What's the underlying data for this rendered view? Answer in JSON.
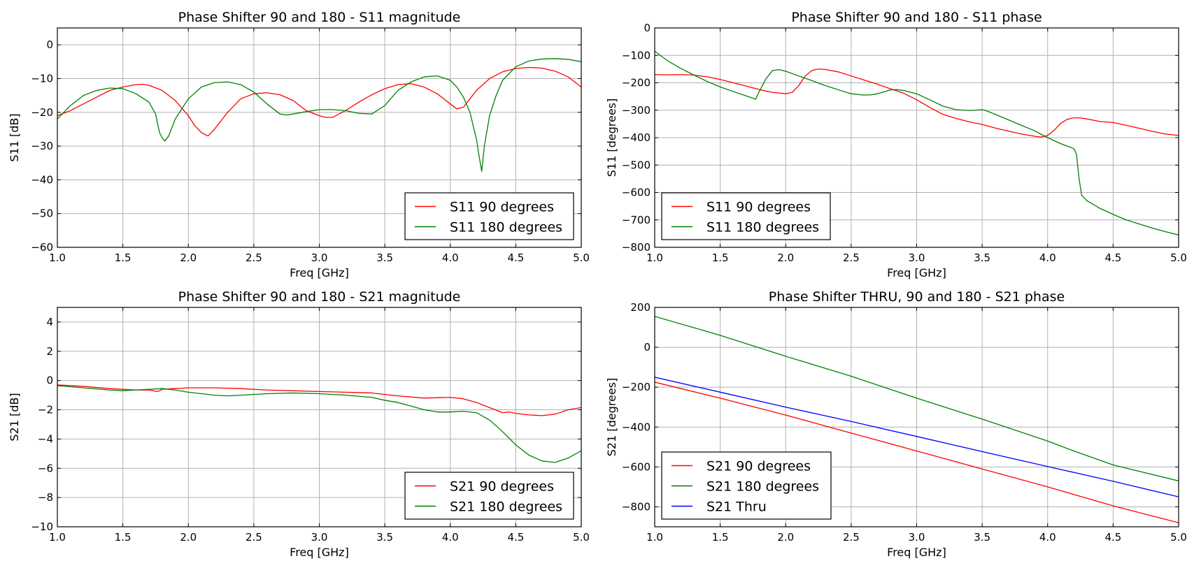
{
  "chart_data": [
    {
      "type": "line",
      "title": "Phase Shifter 90 and 180 - S11 magnitude",
      "xlabel": "Freq [GHz]",
      "ylabel": "S11 [dB]",
      "xlim": [
        1.0,
        5.0
      ],
      "ylim": [
        -60,
        5
      ],
      "xticks": [
        "1.0",
        "1.5",
        "2.0",
        "2.5",
        "3.0",
        "3.5",
        "4.0",
        "4.5",
        "5.0"
      ],
      "yticks": [
        "−60",
        "−50",
        "−40",
        "−30",
        "−20",
        "−10",
        "0"
      ],
      "grid": true,
      "legend_position": "lower-right",
      "series": [
        {
          "name": "S11 90 degrees",
          "color": "#ff0000",
          "x": [
            1.0,
            1.1,
            1.2,
            1.3,
            1.4,
            1.5,
            1.6,
            1.65,
            1.7,
            1.8,
            1.9,
            2.0,
            2.05,
            2.1,
            2.15,
            2.2,
            2.3,
            2.4,
            2.5,
            2.6,
            2.7,
            2.8,
            2.9,
            3.0,
            3.05,
            3.1,
            3.2,
            3.3,
            3.4,
            3.5,
            3.6,
            3.7,
            3.8,
            3.9,
            4.0,
            4.05,
            4.1,
            4.15,
            4.2,
            4.3,
            4.4,
            4.5,
            4.6,
            4.7,
            4.8,
            4.9,
            5.0
          ],
          "y": [
            -21,
            -19.5,
            -17.5,
            -15.5,
            -13.5,
            -12.5,
            -11.8,
            -11.7,
            -12,
            -13.5,
            -16.5,
            -21,
            -24,
            -26,
            -27,
            -25,
            -20,
            -16,
            -14.5,
            -14.2,
            -14.8,
            -16.5,
            -19.5,
            -21,
            -21.5,
            -21.5,
            -19.5,
            -17,
            -14.8,
            -13,
            -11.8,
            -11.5,
            -12.5,
            -14.5,
            -17.5,
            -19,
            -18.5,
            -16,
            -13.5,
            -10,
            -8,
            -7,
            -6.7,
            -6.9,
            -7.8,
            -9.5,
            -12.5
          ]
        },
        {
          "name": "S11 180 degrees",
          "color": "#008000",
          "x": [
            1.0,
            1.1,
            1.2,
            1.3,
            1.4,
            1.5,
            1.6,
            1.7,
            1.75,
            1.78,
            1.8,
            1.82,
            1.85,
            1.9,
            2.0,
            2.1,
            2.2,
            2.3,
            2.4,
            2.5,
            2.6,
            2.7,
            2.75,
            2.8,
            2.9,
            3.0,
            3.1,
            3.2,
            3.3,
            3.4,
            3.5,
            3.6,
            3.7,
            3.8,
            3.9,
            4.0,
            4.05,
            4.1,
            4.15,
            4.2,
            4.22,
            4.24,
            4.26,
            4.3,
            4.35,
            4.4,
            4.5,
            4.6,
            4.7,
            4.8,
            4.9,
            5.0
          ],
          "y": [
            -22,
            -18,
            -15,
            -13.5,
            -12.8,
            -13,
            -14.5,
            -17,
            -20.5,
            -26,
            -27.5,
            -28.5,
            -27,
            -22,
            -16,
            -12.5,
            -11.2,
            -11,
            -11.8,
            -14,
            -17.5,
            -20.5,
            -20.8,
            -20.5,
            -19.8,
            -19.2,
            -19.2,
            -19.5,
            -20.3,
            -20.5,
            -18,
            -13.5,
            -11,
            -9.5,
            -9.2,
            -10.5,
            -12.5,
            -15.5,
            -20,
            -28,
            -33,
            -37.5,
            -30,
            -21,
            -15,
            -10.5,
            -6.5,
            -4.8,
            -4.2,
            -4.1,
            -4.3,
            -5
          ]
        }
      ]
    },
    {
      "type": "line",
      "title": "Phase Shifter 90 and 180 - S11 phase",
      "xlabel": "Freq [GHz]",
      "ylabel": "S11 [degrees]",
      "xlim": [
        1.0,
        5.0
      ],
      "ylim": [
        -800,
        0
      ],
      "xticks": [
        "1.0",
        "1.5",
        "2.0",
        "2.5",
        "3.0",
        "3.5",
        "4.0",
        "4.5",
        "5.0"
      ],
      "yticks": [
        "−800",
        "−700",
        "−600",
        "−500",
        "−400",
        "−300",
        "−200",
        "−100",
        "0"
      ],
      "grid": true,
      "legend_position": "lower-left",
      "series": [
        {
          "name": "S11 90 degrees",
          "color": "#ff0000",
          "x": [
            1.0,
            1.1,
            1.2,
            1.3,
            1.4,
            1.5,
            1.6,
            1.7,
            1.8,
            1.9,
            2.0,
            2.05,
            2.1,
            2.15,
            2.2,
            2.25,
            2.3,
            2.4,
            2.5,
            2.6,
            2.7,
            2.8,
            2.9,
            3.0,
            3.1,
            3.2,
            3.3,
            3.4,
            3.5,
            3.6,
            3.7,
            3.8,
            3.9,
            3.95,
            4.0,
            4.05,
            4.1,
            4.15,
            4.2,
            4.25,
            4.3,
            4.4,
            4.5,
            4.6,
            4.7,
            4.8,
            4.9,
            5.0
          ],
          "y": [
            -170,
            -171,
            -170,
            -172,
            -178,
            -188,
            -200,
            -212,
            -225,
            -235,
            -240,
            -235,
            -210,
            -175,
            -155,
            -150,
            -151,
            -160,
            -175,
            -190,
            -205,
            -222,
            -238,
            -262,
            -290,
            -315,
            -330,
            -342,
            -352,
            -365,
            -376,
            -387,
            -395,
            -398,
            -392,
            -373,
            -348,
            -333,
            -328,
            -328,
            -332,
            -341,
            -345,
            -355,
            -366,
            -377,
            -387,
            -392
          ]
        },
        {
          "name": "S11 180 degrees",
          "color": "#008000",
          "x": [
            1.0,
            1.1,
            1.2,
            1.3,
            1.4,
            1.5,
            1.6,
            1.7,
            1.75,
            1.77,
            1.8,
            1.85,
            1.9,
            1.95,
            2.0,
            2.1,
            2.2,
            2.3,
            2.4,
            2.5,
            2.6,
            2.65,
            2.7,
            2.8,
            2.85,
            2.9,
            3.0,
            3.1,
            3.2,
            3.3,
            3.4,
            3.45,
            3.5,
            3.52,
            3.6,
            3.7,
            3.8,
            3.9,
            4.0,
            4.1,
            4.2,
            4.22,
            4.24,
            4.26,
            4.3,
            4.4,
            4.5,
            4.6,
            4.7,
            4.8,
            4.9,
            5.0
          ],
          "y": [
            -85,
            -120,
            -148,
            -172,
            -195,
            -215,
            -232,
            -248,
            -256,
            -260,
            -230,
            -185,
            -155,
            -152,
            -158,
            -175,
            -192,
            -210,
            -225,
            -240,
            -245,
            -244,
            -240,
            -226,
            -225,
            -228,
            -240,
            -262,
            -285,
            -298,
            -301,
            -300,
            -298,
            -300,
            -315,
            -335,
            -355,
            -375,
            -400,
            -422,
            -440,
            -460,
            -550,
            -610,
            -630,
            -658,
            -680,
            -700,
            -715,
            -730,
            -743,
            -755
          ]
        }
      ]
    },
    {
      "type": "line",
      "title": "Phase Shifter 90 and 180 - S21 magnitude",
      "xlabel": "Freq [GHz]",
      "ylabel": "S21 [dB]",
      "xlim": [
        1.0,
        5.0
      ],
      "ylim": [
        -10,
        5
      ],
      "xticks": [
        "1.0",
        "1.5",
        "2.0",
        "2.5",
        "3.0",
        "3.5",
        "4.0",
        "4.5",
        "5.0"
      ],
      "yticks": [
        "−10",
        "−8",
        "−6",
        "−4",
        "−2",
        "0",
        "2",
        "4"
      ],
      "grid": true,
      "legend_position": "lower-right",
      "series": [
        {
          "name": "S21 90 degrees",
          "color": "#ff0000",
          "x": [
            1.0,
            1.2,
            1.4,
            1.6,
            1.7,
            1.76,
            1.78,
            1.8,
            1.9,
            2.0,
            2.2,
            2.4,
            2.6,
            2.8,
            3.0,
            3.2,
            3.4,
            3.6,
            3.8,
            4.0,
            4.1,
            4.2,
            4.3,
            4.4,
            4.45,
            4.5,
            4.6,
            4.7,
            4.8,
            4.9,
            5.0
          ],
          "y": [
            -0.3,
            -0.4,
            -0.55,
            -0.65,
            -0.65,
            -0.75,
            -0.7,
            -0.6,
            -0.55,
            -0.5,
            -0.5,
            -0.55,
            -0.65,
            -0.7,
            -0.75,
            -0.8,
            -0.85,
            -1.05,
            -1.2,
            -1.15,
            -1.25,
            -1.5,
            -1.85,
            -2.2,
            -2.15,
            -2.25,
            -2.35,
            -2.4,
            -2.3,
            -2.0,
            -1.85
          ]
        },
        {
          "name": "S21 180 degrees",
          "color": "#008000",
          "x": [
            1.0,
            1.2,
            1.4,
            1.5,
            1.6,
            1.7,
            1.8,
            1.9,
            2.0,
            2.1,
            2.2,
            2.3,
            2.4,
            2.6,
            2.8,
            3.0,
            3.2,
            3.4,
            3.5,
            3.6,
            3.7,
            3.8,
            3.9,
            4.0,
            4.1,
            4.2,
            4.3,
            4.4,
            4.5,
            4.6,
            4.7,
            4.8,
            4.9,
            5.0
          ],
          "y": [
            -0.35,
            -0.5,
            -0.65,
            -0.7,
            -0.65,
            -0.6,
            -0.55,
            -0.65,
            -0.8,
            -0.9,
            -1.0,
            -1.05,
            -1.0,
            -0.9,
            -0.85,
            -0.9,
            -1.0,
            -1.15,
            -1.35,
            -1.5,
            -1.75,
            -2.0,
            -2.15,
            -2.15,
            -2.1,
            -2.2,
            -2.7,
            -3.5,
            -4.4,
            -5.1,
            -5.5,
            -5.6,
            -5.3,
            -4.8
          ]
        }
      ]
    },
    {
      "type": "line",
      "title": "Phase Shifter THRU, 90 and 180 - S21 phase",
      "xlabel": "Freq [GHz]",
      "ylabel": "S21 [degrees]",
      "xlim": [
        1.0,
        5.0
      ],
      "ylim": [
        -900,
        200
      ],
      "xticks": [
        "1.0",
        "1.5",
        "2.0",
        "2.5",
        "3.0",
        "3.5",
        "4.0",
        "4.5",
        "5.0"
      ],
      "yticks": [
        "−800",
        "−600",
        "−400",
        "−200",
        "0",
        "200"
      ],
      "grid": true,
      "legend_position": "lower-left",
      "series": [
        {
          "name": "S21 90 degrees",
          "color": "#ff0000",
          "x": [
            1.0,
            1.5,
            2.0,
            2.5,
            3.0,
            3.5,
            4.0,
            4.5,
            5.0
          ],
          "y": [
            -175,
            -255,
            -340,
            -430,
            -520,
            -610,
            -700,
            -795,
            -880
          ]
        },
        {
          "name": "S21 180 degrees",
          "color": "#008000",
          "x": [
            1.0,
            1.5,
            2.0,
            2.5,
            3.0,
            3.5,
            4.0,
            4.2,
            4.5,
            5.0
          ],
          "y": [
            155,
            60,
            -45,
            -145,
            -255,
            -360,
            -470,
            -520,
            -590,
            -670
          ]
        },
        {
          "name": "S21 Thru",
          "color": "#0000ff",
          "x": [
            1.0,
            1.5,
            2.0,
            2.5,
            3.0,
            3.5,
            4.0,
            4.5,
            5.0
          ],
          "y": [
            -150,
            -225,
            -300,
            -372,
            -447,
            -523,
            -598,
            -672,
            -750
          ]
        }
      ]
    }
  ]
}
